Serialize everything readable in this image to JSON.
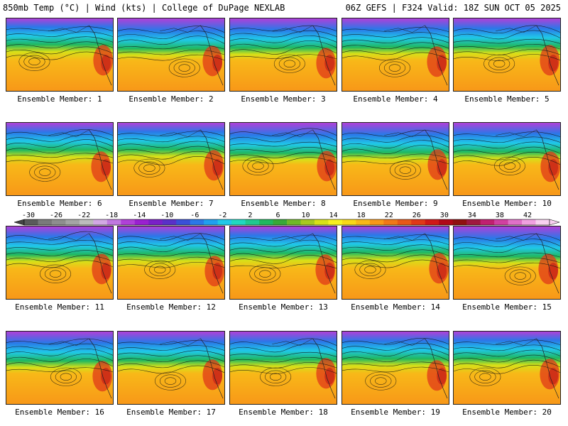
{
  "header": {
    "left": "850mb Temp (°C) | Wind (kts) | College of DuPage NEXLAB",
    "right": "06Z GEFS | F324 Valid: 18Z SUN OCT 05 2025"
  },
  "members": [
    {
      "label": "Ensemble Member: 1"
    },
    {
      "label": "Ensemble Member: 2"
    },
    {
      "label": "Ensemble Member: 3"
    },
    {
      "label": "Ensemble Member: 4"
    },
    {
      "label": "Ensemble Member: 5"
    },
    {
      "label": "Ensemble Member: 6"
    },
    {
      "label": "Ensemble Member: 7"
    },
    {
      "label": "Ensemble Member: 8"
    },
    {
      "label": "Ensemble Member: 9"
    },
    {
      "label": "Ensemble Member: 10"
    },
    {
      "label": "Ensemble Member: 11"
    },
    {
      "label": "Ensemble Member: 12"
    },
    {
      "label": "Ensemble Member: 13"
    },
    {
      "label": "Ensemble Member: 14"
    },
    {
      "label": "Ensemble Member: 15"
    },
    {
      "label": "Ensemble Member: 16"
    },
    {
      "label": "Ensemble Member: 17"
    },
    {
      "label": "Ensemble Member: 18"
    },
    {
      "label": "Ensemble Member: 19"
    },
    {
      "label": "Ensemble Member: 20"
    }
  ],
  "colorbar": {
    "labels": [
      "-30",
      "-26",
      "-22",
      "-18",
      "-14",
      "-10",
      "-6",
      "-2",
      "2",
      "6",
      "10",
      "14",
      "18",
      "22",
      "26",
      "30",
      "34",
      "38",
      "42"
    ],
    "colors": [
      "#5a5a5a",
      "#7a7a7a",
      "#8e8e8e",
      "#a4a4a4",
      "#bcbcbc",
      "#d2a8e4",
      "#c078e0",
      "#b040d8",
      "#9a20d0",
      "#7a20c8",
      "#5a30c8",
      "#3a50d8",
      "#2a78e8",
      "#20a0f0",
      "#20c8e8",
      "#20d8c0",
      "#20c890",
      "#20b860",
      "#38a838",
      "#70b828",
      "#a8c820",
      "#d8e018",
      "#f8f020",
      "#f8d818",
      "#f8b818",
      "#f89818",
      "#f07818",
      "#e85818",
      "#e03818",
      "#d01818",
      "#b00818",
      "#901010",
      "#a01840",
      "#c02070",
      "#d040a0",
      "#e070c8",
      "#f0a0e0",
      "#f8d0f0"
    ]
  },
  "palette": {
    "band_north": "#b040d8",
    "band_blue": "#2a78e8",
    "band_cyan": "#20c8e8",
    "band_green": "#20b860",
    "band_yellow": "#d8e018",
    "band_orange": "#f8b818",
    "band_warm": "#f89818",
    "hot": "#e03818"
  }
}
